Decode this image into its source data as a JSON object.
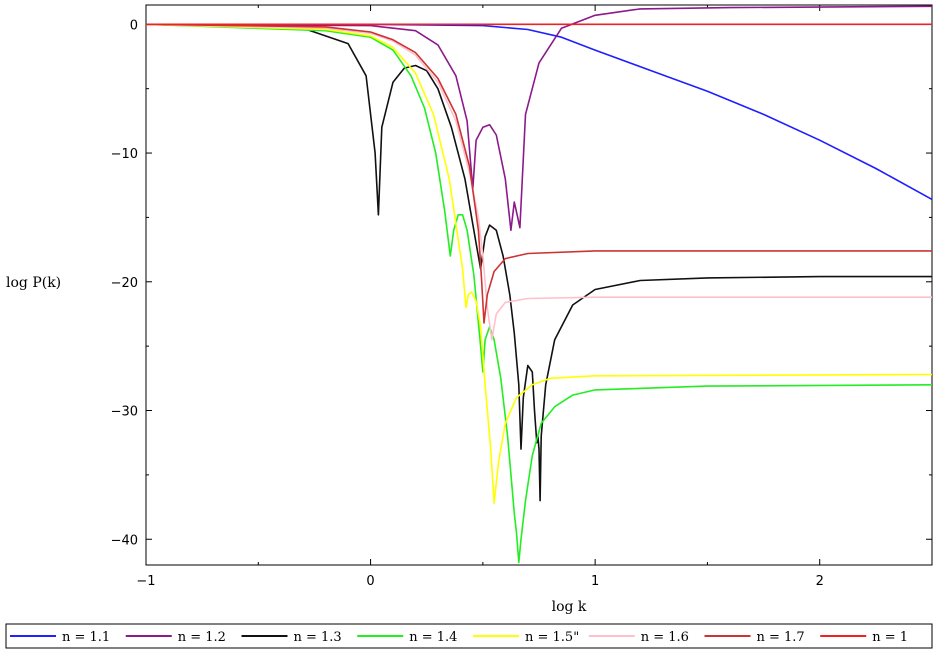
{
  "chart_data": {
    "type": "line",
    "title": "",
    "xlabel": "log k",
    "ylabel": "log P(k)",
    "xlim": [
      -1,
      2.5
    ],
    "ylim": [
      -42,
      1.5
    ],
    "grid": false,
    "legend_placement": "bottom",
    "x_ticks": [
      "-1",
      "0",
      "1",
      "2"
    ],
    "x_tick_values": [
      -1,
      0,
      1,
      2
    ],
    "y_ticks": [
      "0",
      "-10",
      "-20",
      "-30",
      "-40"
    ],
    "y_tick_values": [
      0,
      -10,
      -20,
      -30,
      -40
    ],
    "series": [
      {
        "name": "n = 1.1",
        "color": "#1f1fff",
        "points": [
          [
            -1,
            0
          ],
          [
            0,
            0
          ],
          [
            0.5,
            -0.1
          ],
          [
            0.7,
            -0.4
          ],
          [
            0.85,
            -1.0
          ],
          [
            1.0,
            -2.0
          ],
          [
            1.25,
            -3.6
          ],
          [
            1.5,
            -5.2
          ],
          [
            1.75,
            -7.0
          ],
          [
            2.0,
            -9.0
          ],
          [
            2.25,
            -11.2
          ],
          [
            2.5,
            -13.6
          ]
        ]
      },
      {
        "name": "n = 1.2",
        "color": "#8b1a8b",
        "points": [
          [
            -1,
            0
          ],
          [
            0,
            -0.1
          ],
          [
            0.2,
            -0.5
          ],
          [
            0.3,
            -1.6
          ],
          [
            0.38,
            -4.0
          ],
          [
            0.43,
            -7.5
          ],
          [
            0.455,
            -12.8
          ],
          [
            0.47,
            -9.0
          ],
          [
            0.5,
            -8.0
          ],
          [
            0.53,
            -7.8
          ],
          [
            0.56,
            -8.6
          ],
          [
            0.6,
            -12.0
          ],
          [
            0.625,
            -16.0
          ],
          [
            0.64,
            -13.8
          ],
          [
            0.655,
            -15.0
          ],
          [
            0.665,
            -15.8
          ],
          [
            0.69,
            -7.0
          ],
          [
            0.75,
            -3.0
          ],
          [
            0.85,
            -0.3
          ],
          [
            1.0,
            0.7
          ],
          [
            1.2,
            1.2
          ],
          [
            1.6,
            1.3
          ],
          [
            2.5,
            1.4
          ]
        ]
      },
      {
        "name": "n = 1.3",
        "color": "#111111",
        "points": [
          [
            -1,
            0
          ],
          [
            -0.3,
            -0.3
          ],
          [
            -0.1,
            -1.5
          ],
          [
            -0.02,
            -4.0
          ],
          [
            0.02,
            -10.0
          ],
          [
            0.035,
            -14.8
          ],
          [
            0.05,
            -8.0
          ],
          [
            0.1,
            -4.5
          ],
          [
            0.15,
            -3.4
          ],
          [
            0.2,
            -3.2
          ],
          [
            0.25,
            -3.6
          ],
          [
            0.3,
            -5.0
          ],
          [
            0.36,
            -8.0
          ],
          [
            0.42,
            -12.0
          ],
          [
            0.47,
            -17.0
          ],
          [
            0.49,
            -19.0
          ],
          [
            0.51,
            -16.5
          ],
          [
            0.53,
            -15.6
          ],
          [
            0.56,
            -16.0
          ],
          [
            0.59,
            -18.0
          ],
          [
            0.62,
            -21.0
          ],
          [
            0.64,
            -24.0
          ],
          [
            0.66,
            -28.0
          ],
          [
            0.67,
            -33.0
          ],
          [
            0.68,
            -29.0
          ],
          [
            0.7,
            -26.5
          ],
          [
            0.72,
            -27.0
          ],
          [
            0.73,
            -30.0
          ],
          [
            0.74,
            -32.5
          ],
          [
            0.745,
            -32.0
          ],
          [
            0.75,
            -33.0
          ],
          [
            0.755,
            -37.0
          ],
          [
            0.76,
            -32.0
          ],
          [
            0.78,
            -28.0
          ],
          [
            0.82,
            -24.5
          ],
          [
            0.9,
            -21.8
          ],
          [
            1.0,
            -20.6
          ],
          [
            1.2,
            -19.9
          ],
          [
            1.5,
            -19.7
          ],
          [
            2.0,
            -19.6
          ],
          [
            2.5,
            -19.6
          ]
        ]
      },
      {
        "name": "n = 1.4",
        "color": "#22ee22",
        "points": [
          [
            -1,
            0
          ],
          [
            -0.2,
            -0.5
          ],
          [
            0,
            -1.0
          ],
          [
            0.1,
            -2.0
          ],
          [
            0.18,
            -4.0
          ],
          [
            0.24,
            -6.5
          ],
          [
            0.29,
            -10.0
          ],
          [
            0.33,
            -14.5
          ],
          [
            0.355,
            -18.0
          ],
          [
            0.37,
            -16.0
          ],
          [
            0.39,
            -14.8
          ],
          [
            0.41,
            -14.8
          ],
          [
            0.43,
            -16.0
          ],
          [
            0.46,
            -19.5
          ],
          [
            0.49,
            -25.0
          ],
          [
            0.5,
            -27.0
          ],
          [
            0.51,
            -24.5
          ],
          [
            0.53,
            -23.5
          ],
          [
            0.55,
            -24.5
          ],
          [
            0.58,
            -27.5
          ],
          [
            0.61,
            -32.0
          ],
          [
            0.63,
            -36.0
          ],
          [
            0.64,
            -38.0
          ],
          [
            0.65,
            -39.5
          ],
          [
            0.66,
            -41.8
          ],
          [
            0.67,
            -40.0
          ],
          [
            0.69,
            -37.0
          ],
          [
            0.72,
            -33.5
          ],
          [
            0.76,
            -31.0
          ],
          [
            0.82,
            -29.7
          ],
          [
            0.9,
            -28.8
          ],
          [
            1.0,
            -28.4
          ],
          [
            1.5,
            -28.1
          ],
          [
            2.5,
            -28.0
          ]
        ]
      },
      {
        "name": "n = 1.5\"",
        "color": "#ffff00",
        "points": [
          [
            -1,
            0
          ],
          [
            -0.2,
            -0.4
          ],
          [
            0,
            -0.9
          ],
          [
            0.1,
            -1.8
          ],
          [
            0.2,
            -3.8
          ],
          [
            0.28,
            -7.0
          ],
          [
            0.35,
            -12.0
          ],
          [
            0.38,
            -15.5
          ],
          [
            0.41,
            -19.0
          ],
          [
            0.425,
            -22.0
          ],
          [
            0.435,
            -21.0
          ],
          [
            0.45,
            -20.8
          ],
          [
            0.47,
            -21.5
          ],
          [
            0.49,
            -23.5
          ],
          [
            0.51,
            -28.0
          ],
          [
            0.535,
            -33.0
          ],
          [
            0.55,
            -37.2
          ],
          [
            0.57,
            -34.0
          ],
          [
            0.6,
            -31.0
          ],
          [
            0.65,
            -29.0
          ],
          [
            0.72,
            -28.0
          ],
          [
            0.8,
            -27.5
          ],
          [
            1.0,
            -27.3
          ],
          [
            2.5,
            -27.2
          ]
        ]
      },
      {
        "name": "n = 1.6",
        "color": "#ffc0cb",
        "points": [
          [
            -1,
            0
          ],
          [
            -0.2,
            -0.3
          ],
          [
            0,
            -0.7
          ],
          [
            0.1,
            -1.3
          ],
          [
            0.2,
            -2.4
          ],
          [
            0.3,
            -4.5
          ],
          [
            0.38,
            -7.5
          ],
          [
            0.44,
            -11.5
          ],
          [
            0.48,
            -15.0
          ],
          [
            0.5,
            -18.0
          ],
          [
            0.52,
            -22.0
          ],
          [
            0.54,
            -24.5
          ],
          [
            0.56,
            -22.5
          ],
          [
            0.6,
            -21.6
          ],
          [
            0.7,
            -21.3
          ],
          [
            1.0,
            -21.2
          ],
          [
            2.5,
            -21.2
          ]
        ]
      },
      {
        "name": "n = 1.7",
        "color": "#cc3333",
        "points": [
          [
            -1,
            0
          ],
          [
            -0.2,
            -0.2
          ],
          [
            0,
            -0.6
          ],
          [
            0.1,
            -1.2
          ],
          [
            0.2,
            -2.2
          ],
          [
            0.3,
            -4.2
          ],
          [
            0.38,
            -7.0
          ],
          [
            0.44,
            -11.0
          ],
          [
            0.48,
            -16.0
          ],
          [
            0.495,
            -20.0
          ],
          [
            0.505,
            -23.2
          ],
          [
            0.52,
            -21.0
          ],
          [
            0.55,
            -19.2
          ],
          [
            0.6,
            -18.2
          ],
          [
            0.7,
            -17.8
          ],
          [
            1.0,
            -17.6
          ],
          [
            2.5,
            -17.6
          ]
        ]
      },
      {
        "name": "n = 1",
        "color": "#ee2222",
        "points": [
          [
            -1,
            0
          ],
          [
            2.5,
            0
          ]
        ]
      }
    ]
  }
}
